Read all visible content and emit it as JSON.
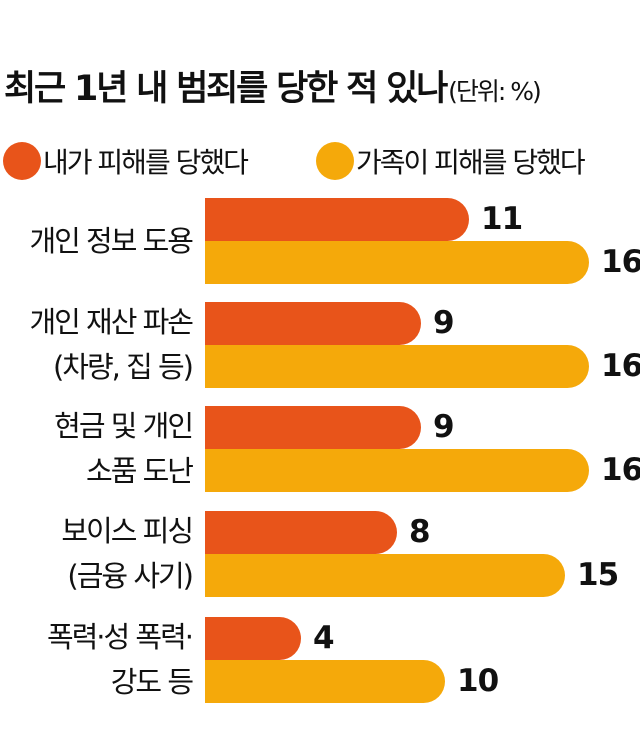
{
  "header": {
    "title": "최근 1년 내 범죄를 당한 적 있나",
    "unit": "(단위: %)"
  },
  "legend": [
    {
      "label": "내가 피해를 당했다",
      "color": "#E8541A",
      "icon": "circle-icon"
    },
    {
      "label": "가족이 피해를 당했다",
      "color": "#F5A90A",
      "icon": "circle-icon"
    }
  ],
  "colors": {
    "self": "#E8541A",
    "family": "#F5A90A",
    "text": "#111111",
    "background": "#FFFFFF"
  },
  "chart_data": {
    "type": "bar",
    "orientation": "horizontal",
    "title": "최근 1년 내 범죄를 당한 적 있나",
    "subtitle": "(단위: %)",
    "xlabel": "",
    "ylabel": "",
    "grid": false,
    "legend_position": "top",
    "categories": [
      "개인 정보 도용",
      "개인 재산 파손 (차량, 집 등)",
      "현금 및 개인 소품 도난",
      "보이스 피싱 (금융 사기)",
      "폭력·성 폭력· 강도 등"
    ],
    "category_lines": [
      [
        "개인 정보 도용"
      ],
      [
        "개인 재산 파손",
        "(차량, 집 등)"
      ],
      [
        "현금 및 개인",
        "소품 도난"
      ],
      [
        "보이스 피싱",
        "(금융 사기)"
      ],
      [
        "폭력·성 폭력·",
        "강도 등"
      ]
    ],
    "series": [
      {
        "name": "내가 피해를 당했다",
        "color": "#E8541A",
        "values": [
          11,
          9,
          9,
          8,
          4
        ]
      },
      {
        "name": "가족이 피해를 당했다",
        "color": "#F5A90A",
        "values": [
          16,
          16,
          16,
          15,
          10
        ]
      }
    ],
    "xlim": [
      0,
      17
    ]
  }
}
